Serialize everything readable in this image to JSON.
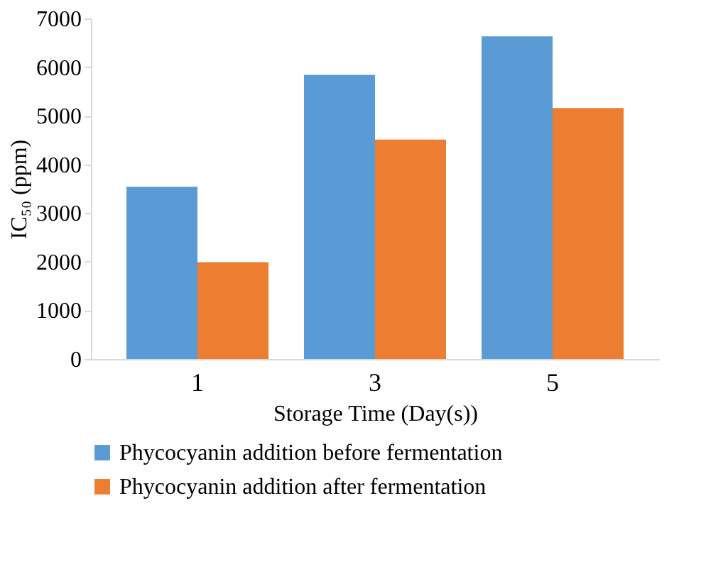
{
  "chart_data": {
    "type": "bar",
    "xlabel": "Storage Time (Day(s))",
    "ylabel": "IC₅₀ (ppm)",
    "categories": [
      "1",
      "3",
      "5"
    ],
    "series": [
      {
        "name": "Phycocyanin addition before fermentation",
        "color": "#5b9bd5",
        "values": [
          3540,
          5840,
          6630
        ]
      },
      {
        "name": "Phycocyanin addition after fermentation",
        "color": "#ed7d31",
        "values": [
          1990,
          4510,
          5160
        ]
      }
    ],
    "ylim": [
      0,
      7000
    ],
    "yticks": [
      0,
      1000,
      2000,
      3000,
      4000,
      5000,
      6000,
      7000
    ],
    "grid": false,
    "legend": "bottom"
  }
}
